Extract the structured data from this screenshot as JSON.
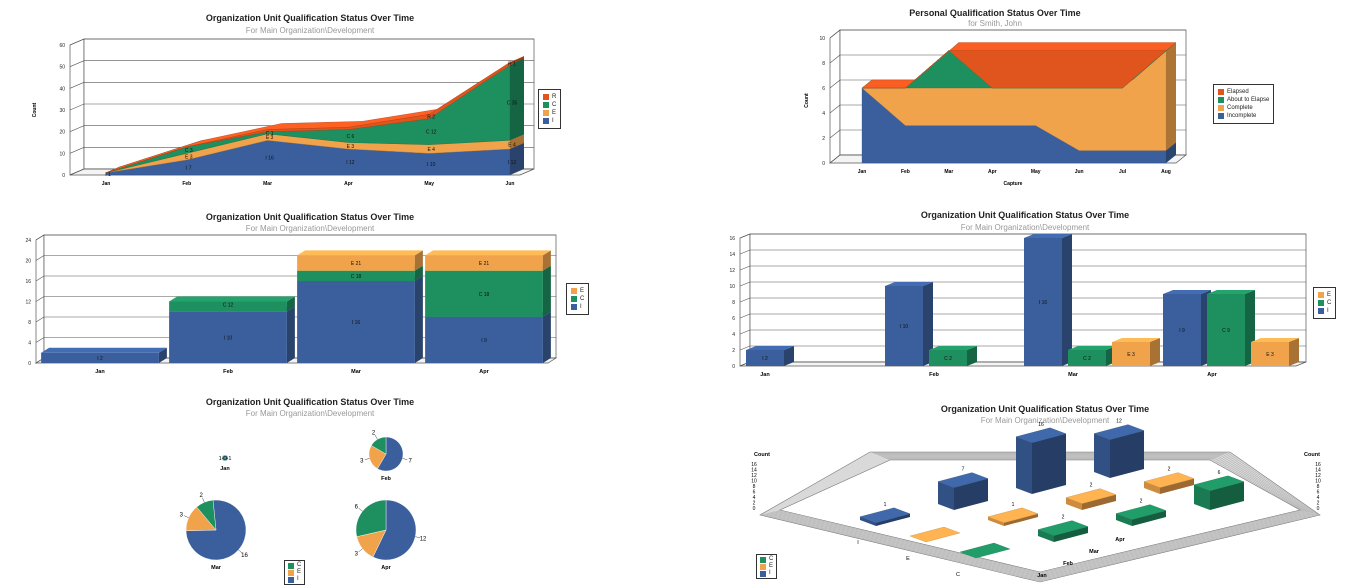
{
  "colors": {
    "I": "#3a5f9c",
    "E": "#f0a34a",
    "C": "#1e8f5f",
    "R": "#e0541e",
    "Elapsed": "#e0541e",
    "About to Elapse": "#1e8f5f",
    "Complete": "#f0a34a",
    "Incomplete": "#3a5f9c"
  },
  "chart_data": [
    {
      "id": "c1",
      "type": "area",
      "title": "Organization Unit Qualification Status Over Time",
      "subtitle": "For Main Organization\\Development",
      "ylabel": "Count",
      "xlabel": "",
      "ylim": [
        0,
        60
      ],
      "yticks": [
        0,
        10,
        20,
        30,
        40,
        50,
        60
      ],
      "categories": [
        "Jan",
        "Feb",
        "Mar",
        "Apr",
        "May",
        "Jun"
      ],
      "series": [
        {
          "name": "I",
          "values": [
            1,
            7,
            16,
            12,
            10,
            12
          ]
        },
        {
          "name": "E",
          "values": [
            0,
            3,
            3,
            3,
            4,
            4
          ]
        },
        {
          "name": "C",
          "values": [
            0,
            3,
            1,
            6,
            12,
            35
          ]
        },
        {
          "name": "R",
          "values": [
            0,
            0,
            1,
            1,
            2,
            1
          ]
        }
      ],
      "data_labels": [
        {
          "cat": 0,
          "series": "I",
          "text": "I 1"
        },
        {
          "cat": 1,
          "series": "I",
          "text": "I 7"
        },
        {
          "cat": 1,
          "series": "E",
          "text": "E 3"
        },
        {
          "cat": 1,
          "series": "C",
          "text": "C 3"
        },
        {
          "cat": 2,
          "series": "I",
          "text": "I 16"
        },
        {
          "cat": 2,
          "series": "E",
          "text": "E 3"
        },
        {
          "cat": 2,
          "series": "C",
          "text": "C 1"
        },
        {
          "cat": 3,
          "series": "I",
          "text": "I 12"
        },
        {
          "cat": 3,
          "series": "E",
          "text": "E 3"
        },
        {
          "cat": 3,
          "series": "C",
          "text": "C 6"
        },
        {
          "cat": 4,
          "series": "I",
          "text": "I 10"
        },
        {
          "cat": 4,
          "series": "E",
          "text": "E 4"
        },
        {
          "cat": 4,
          "series": "C",
          "text": "C 12"
        },
        {
          "cat": 4,
          "series": "R",
          "text": "R 2"
        },
        {
          "cat": 5,
          "series": "I",
          "text": "I 12"
        },
        {
          "cat": 5,
          "series": "E",
          "text": "E 4"
        },
        {
          "cat": 5,
          "series": "C",
          "text": "C 35"
        },
        {
          "cat": 5,
          "series": "R",
          "text": "R 1"
        }
      ],
      "legend": [
        "R",
        "C",
        "E",
        "I"
      ],
      "legend_position": "right",
      "grid": true
    },
    {
      "id": "c2",
      "type": "area",
      "title": "Personal Qualification Status Over Time",
      "subtitle": "for Smith, John",
      "ylabel": "Count",
      "xlabel": "Capture",
      "ylim": [
        0,
        10
      ],
      "yticks": [
        0,
        2,
        4,
        6,
        8,
        10
      ],
      "categories": [
        "Jan",
        "Feb",
        "Mar",
        "Apr",
        "May",
        "Jun",
        "Jul",
        "Aug"
      ],
      "series": [
        {
          "name": "Incomplete",
          "values": [
            6,
            3,
            3,
            3,
            3,
            1,
            1,
            1
          ]
        },
        {
          "name": "Complete",
          "values": [
            0,
            3,
            3,
            3,
            3,
            5,
            5,
            8
          ]
        },
        {
          "name": "About to Elapse",
          "values": [
            0,
            0,
            3,
            0,
            0,
            0,
            0,
            0
          ]
        },
        {
          "name": "Elapsed",
          "values": [
            0,
            0,
            0,
            3,
            3,
            3,
            3,
            0
          ]
        }
      ],
      "legend": [
        "Elapsed",
        "About to Elapse",
        "Complete",
        "Incomplete"
      ],
      "legend_position": "right",
      "grid": true
    },
    {
      "id": "c3",
      "type": "bar",
      "title": "Organization Unit Qualification Status Over Time",
      "subtitle": "For Main Organization\\Development",
      "ylim": [
        0,
        24
      ],
      "yticks": [
        0,
        4,
        8,
        12,
        16,
        20,
        24
      ],
      "categories": [
        "Jan",
        "Feb",
        "Mar",
        "Apr"
      ],
      "series": [
        {
          "name": "I",
          "values": [
            2,
            10,
            16,
            9
          ]
        },
        {
          "name": "C",
          "values": [
            0,
            2,
            2,
            9
          ]
        },
        {
          "name": "E",
          "values": [
            0,
            0,
            3,
            3
          ]
        }
      ],
      "data_labels": [
        {
          "cat": 0,
          "series": "I",
          "text": "I 2"
        },
        {
          "cat": 1,
          "series": "I",
          "text": "I 10"
        },
        {
          "cat": 1,
          "series": "C",
          "text": "C 12"
        },
        {
          "cat": 2,
          "series": "I",
          "text": "I 16"
        },
        {
          "cat": 2,
          "series": "C",
          "text": "C 18"
        },
        {
          "cat": 2,
          "series": "E",
          "text": "E 21"
        },
        {
          "cat": 3,
          "series": "I",
          "text": "I 9"
        },
        {
          "cat": 3,
          "series": "C",
          "text": "C 18"
        },
        {
          "cat": 3,
          "series": "E",
          "text": "E 21"
        }
      ],
      "legend": [
        "E",
        "C",
        "I"
      ],
      "legend_position": "right",
      "grid": true
    },
    {
      "id": "c4",
      "type": "bar",
      "title": "Organization Unit Qualification Status Over Time",
      "subtitle": "For Main Organization\\Development",
      "ylim": [
        0,
        16
      ],
      "yticks": [
        0,
        2,
        4,
        6,
        8,
        10,
        12,
        14,
        16
      ],
      "categories": [
        "Jan",
        "Feb",
        "Mar",
        "Apr"
      ],
      "series": [
        {
          "name": "I",
          "values": [
            2,
            10,
            16,
            9
          ]
        },
        {
          "name": "C",
          "values": [
            0,
            2,
            2,
            9
          ]
        },
        {
          "name": "E",
          "values": [
            0,
            0,
            3,
            3
          ]
        }
      ],
      "data_labels": [
        {
          "cat": 0,
          "series": "I",
          "text": "I 2"
        },
        {
          "cat": 1,
          "series": "I",
          "text": "I 10"
        },
        {
          "cat": 1,
          "series": "C",
          "text": "C 2"
        },
        {
          "cat": 2,
          "series": "I",
          "text": "I 16"
        },
        {
          "cat": 2,
          "series": "C",
          "text": "C 2"
        },
        {
          "cat": 2,
          "series": "E",
          "text": "E 3"
        },
        {
          "cat": 3,
          "series": "I",
          "text": "I 9"
        },
        {
          "cat": 3,
          "series": "C",
          "text": "C 9"
        },
        {
          "cat": 3,
          "series": "E",
          "text": "E 3"
        }
      ],
      "legend": [
        "E",
        "C",
        "I"
      ],
      "legend_position": "right",
      "grid": true
    },
    {
      "id": "c5",
      "type": "pie",
      "title": "Organization Unit Qualification Status Over Time",
      "subtitle": "For Main Organization\\Development",
      "pies": [
        {
          "label": "Jan",
          "slices": [
            {
              "name": "I",
              "value": 1
            },
            {
              "name": "E",
              "value": 0
            },
            {
              "name": "C",
              "value": 1
            }
          ],
          "value_labels": [
            "1",
            "0",
            "1"
          ]
        },
        {
          "label": "Feb",
          "slices": [
            {
              "name": "I",
              "value": 7
            },
            {
              "name": "E",
              "value": 3
            },
            {
              "name": "C",
              "value": 2
            }
          ],
          "value_labels": [
            "7",
            "3",
            "2"
          ]
        },
        {
          "label": "Mar",
          "slices": [
            {
              "name": "I",
              "value": 16
            },
            {
              "name": "E",
              "value": 3
            },
            {
              "name": "C",
              "value": 2
            }
          ],
          "value_labels": [
            "16",
            "3",
            "2"
          ]
        },
        {
          "label": "Apr",
          "slices": [
            {
              "name": "I",
              "value": 12
            },
            {
              "name": "E",
              "value": 3
            },
            {
              "name": "C",
              "value": 6
            }
          ],
          "value_labels": [
            "12",
            "3",
            "6"
          ]
        }
      ],
      "legend": [
        "C",
        "E",
        "I"
      ],
      "legend_position": "bottom"
    },
    {
      "id": "c6",
      "type": "bar",
      "title": "Organization Unit Qualification Status Over Time",
      "subtitle": "For Main Organization\\Development",
      "zlabel": "Count",
      "yticks": [
        0,
        2,
        4,
        6,
        8,
        10,
        12,
        14,
        16
      ],
      "rows": [
        "I",
        "E",
        "C"
      ],
      "categories": [
        "Jan",
        "Feb",
        "Mar",
        "Apr"
      ],
      "values": {
        "I": [
          1,
          7,
          16,
          12
        ],
        "E": [
          0,
          1,
          2,
          2
        ],
        "C": [
          0,
          2,
          2,
          6
        ]
      },
      "value_labels": {
        "I": [
          "1",
          "7",
          "16",
          "12"
        ],
        "E": [
          "",
          "1",
          "2",
          "2"
        ],
        "C": [
          "",
          "2",
          "2",
          "6"
        ]
      },
      "legend": [
        "C",
        "E",
        "I"
      ],
      "legend_position": "bottom-left",
      "grid": true
    }
  ]
}
